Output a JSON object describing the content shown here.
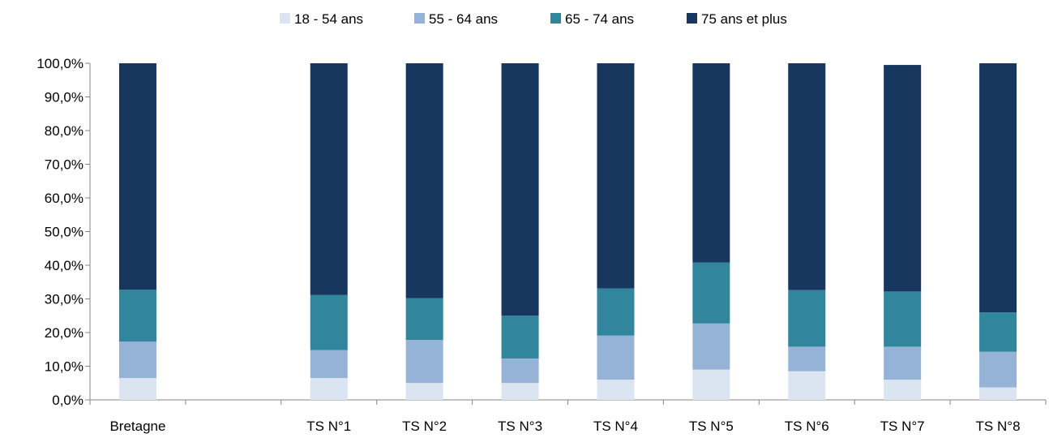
{
  "chart_data": {
    "type": "bar",
    "stacked": true,
    "categories": [
      "Bretagne",
      "",
      "TS N°1",
      "TS N°2",
      "TS N°3",
      "TS N°4",
      "TS N°5",
      "TS N°6",
      "TS N°7",
      "TS N°8"
    ],
    "series": [
      {
        "name": "18 - 54 ans",
        "color": "#dbe5f1",
        "values": [
          6.5,
          null,
          6.5,
          5.0,
          5.0,
          6.0,
          9.0,
          8.5,
          6.0,
          3.7
        ]
      },
      {
        "name": "55 - 64 ans",
        "color": "#95b3d7",
        "values": [
          10.8,
          null,
          8.3,
          12.8,
          7.3,
          13.1,
          13.7,
          7.3,
          9.8,
          10.6
        ]
      },
      {
        "name": "65 - 74 ans",
        "color": "#31859c",
        "values": [
          15.4,
          null,
          16.4,
          12.4,
          12.7,
          14.0,
          18.1,
          16.8,
          16.4,
          11.7
        ]
      },
      {
        "name": "75 ans et plus",
        "color": "#17375e",
        "values": [
          67.3,
          null,
          68.8,
          69.8,
          75.0,
          66.9,
          59.2,
          67.4,
          67.3,
          74.0
        ]
      }
    ],
    "ylim": [
      0,
      100
    ],
    "yticks": [
      "0,0%",
      "10,0%",
      "20,0%",
      "30,0%",
      "40,0%",
      "50,0%",
      "60,0%",
      "70,0%",
      "80,0%",
      "90,0%",
      "100,0%"
    ],
    "ytick_values": [
      0,
      10,
      20,
      30,
      40,
      50,
      60,
      70,
      80,
      90,
      100
    ],
    "legend_position": "top",
    "grid": false,
    "xlabel": "",
    "ylabel": ""
  }
}
